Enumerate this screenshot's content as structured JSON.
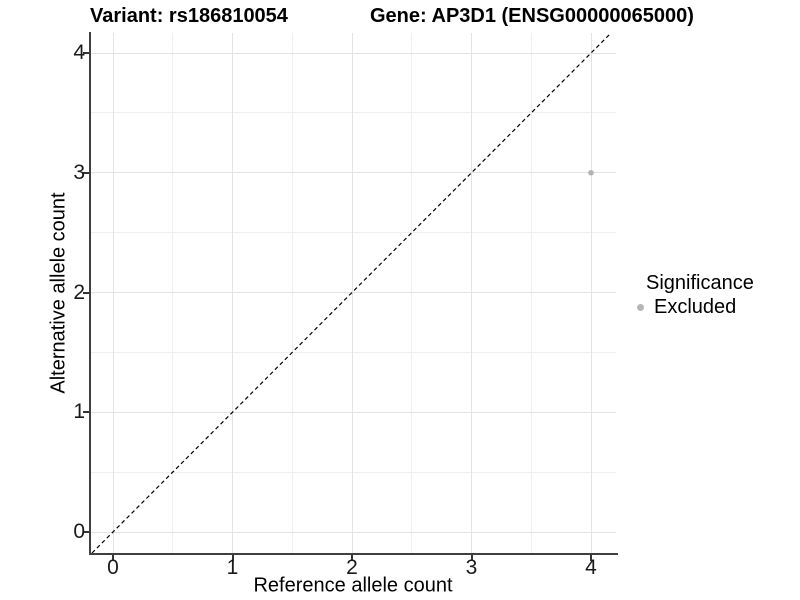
{
  "chart_data": {
    "type": "scatter",
    "titles": {
      "left": "Variant: rs186810054",
      "right": "Gene: AP3D1 (ENSG00000065000)"
    },
    "xlabel": "Reference allele count",
    "ylabel": "Alternative allele count",
    "x_ticks": [
      0,
      1,
      2,
      3,
      4
    ],
    "y_ticks": [
      0,
      1,
      2,
      3,
      4
    ],
    "x_minor_ticks": [
      0.5,
      1.5,
      2.5,
      3.5
    ],
    "y_minor_ticks": [
      0.5,
      1.5,
      2.5,
      3.5
    ],
    "xlim": [
      -0.18,
      4.21
    ],
    "ylim": [
      -0.18,
      4.17
    ],
    "grid": "major and minor gridlines, light grey on white",
    "reference_line": {
      "kind": "abline",
      "slope": 1,
      "intercept": 0,
      "linetype": "dashed",
      "color": "#000000"
    },
    "points": [
      {
        "x": 4,
        "y": 3,
        "significance": "Excluded",
        "color": "#b3b3b3"
      }
    ],
    "legend": {
      "title": "Significance",
      "position": "right",
      "items": [
        {
          "label": "Excluded",
          "marker": "circle",
          "color": "#b5b5b5"
        }
      ]
    },
    "colors": {
      "grid_major": "#e3e3e3",
      "grid_minor": "#efefef",
      "axis_line": "#3f3f3f",
      "tick_mark": "#333333",
      "point": "#b3b3b3",
      "background": "#ffffff"
    }
  }
}
